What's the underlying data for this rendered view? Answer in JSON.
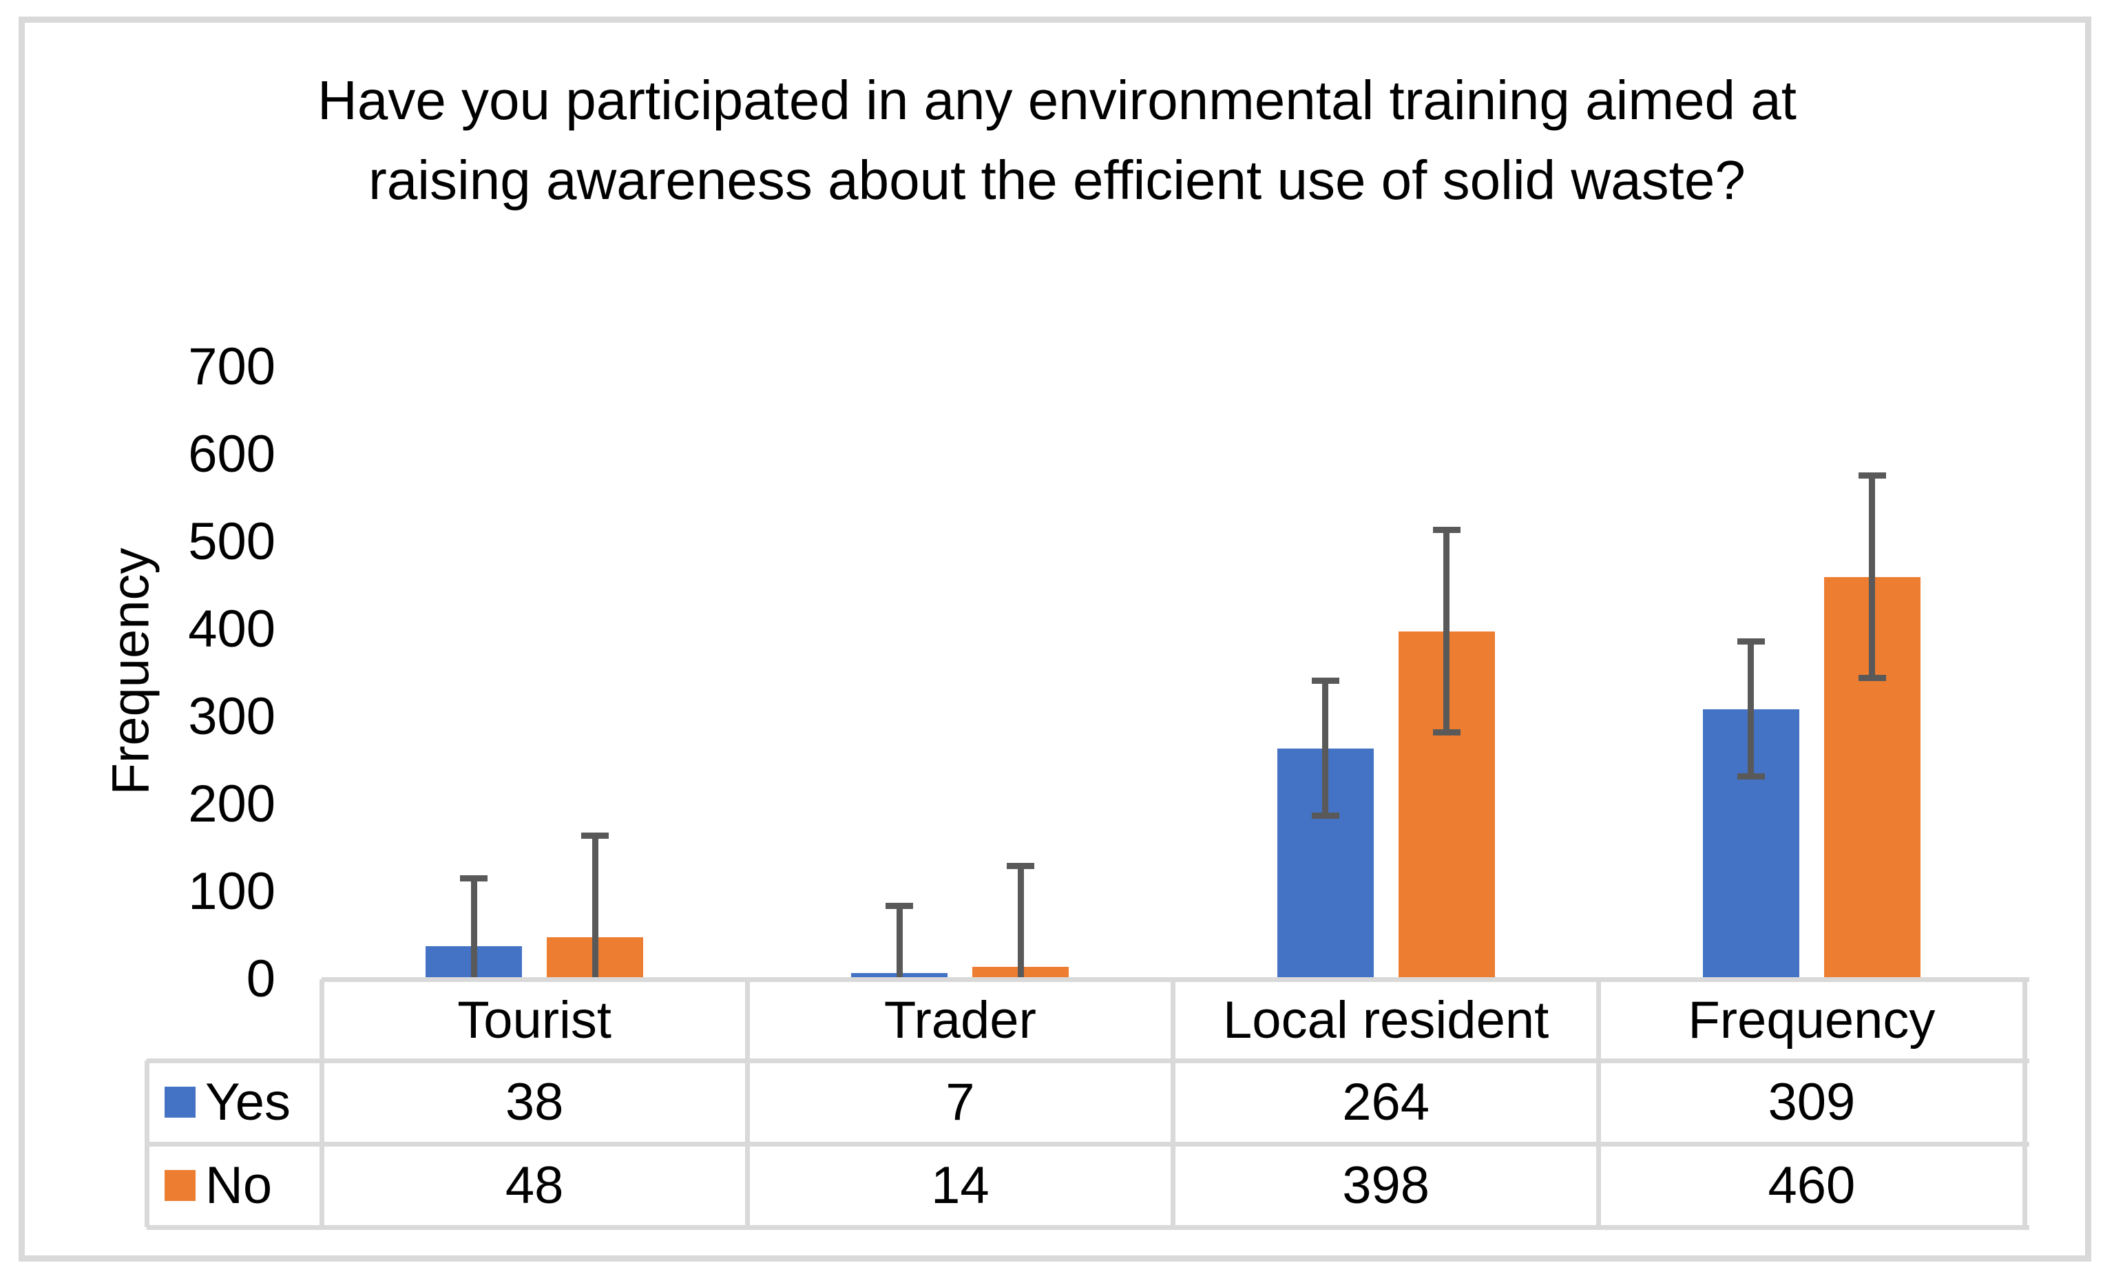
{
  "chart": {
    "title": "Have you participated in any environmental training aimed at raising awareness about the efficient use of solid waste?",
    "y_axis_label": "Frequency",
    "y_ticks": [
      700,
      600,
      500,
      400,
      300,
      200,
      100,
      0
    ]
  },
  "chart_data": {
    "type": "bar",
    "title": "Have you participated in any environmental training aimed at raising awareness about the efficient use of solid waste?",
    "categories": [
      "Tourist",
      "Trader",
      "Local resident",
      "Frequency"
    ],
    "series": [
      {
        "name": "Yes",
        "color": "#4472C4",
        "values": [
          38,
          7,
          264,
          309
        ],
        "error": 77
      },
      {
        "name": "No",
        "color": "#ED7D31",
        "values": [
          48,
          14,
          398,
          460
        ],
        "error": 115.8
      }
    ],
    "xlabel": "",
    "ylabel": "Frequency",
    "ylim": [
      0,
      700
    ],
    "ytick_step": 100,
    "grid": false,
    "error_bars": "plus-minus one standard error, lower whisker clipped at 0",
    "legend_position": "data-table row labels"
  },
  "table": {
    "header": [
      "Tourist",
      "Trader",
      "Local resident",
      "Frequency"
    ],
    "rows": [
      {
        "label": "Yes",
        "values": [
          "38",
          "7",
          "264",
          "309"
        ]
      },
      {
        "label": "No",
        "values": [
          "48",
          "14",
          "398",
          "460"
        ]
      }
    ]
  },
  "colors": {
    "series_yes": "#4472C4",
    "series_no": "#ED7D31",
    "error_bar": "#595959",
    "table_border": "#D9D9D9",
    "frame_border": "#D9D9D9",
    "text": "#000000",
    "background": "#FFFFFF"
  }
}
